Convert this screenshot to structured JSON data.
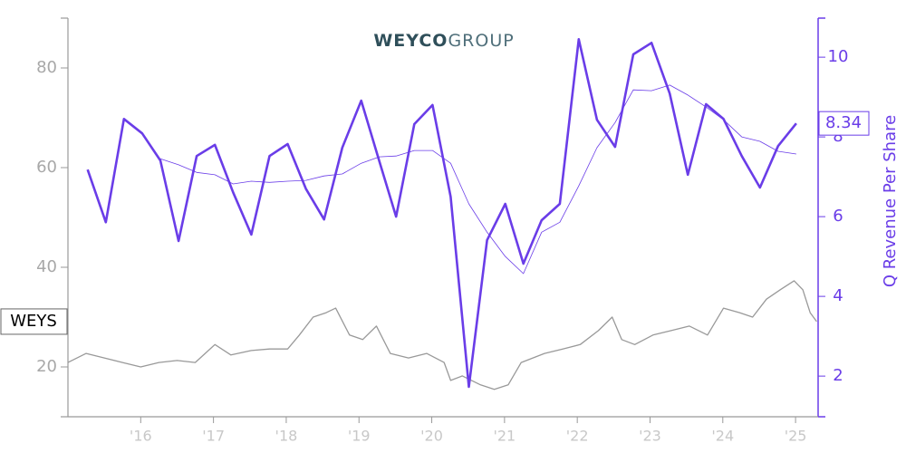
{
  "chart_data": {
    "type": "line",
    "logo": {
      "bold": "WEYCO",
      "light": "GROUP"
    },
    "y2label": "Q Revenue Per Share",
    "xlim": [
      2015,
      2025.31
    ],
    "xticks": [
      {
        "value": 2016,
        "label": "'16"
      },
      {
        "value": 2017,
        "label": "'17"
      },
      {
        "value": 2018,
        "label": "'18"
      },
      {
        "value": 2019,
        "label": "'19"
      },
      {
        "value": 2020,
        "label": "'20"
      },
      {
        "value": 2021,
        "label": "'21"
      },
      {
        "value": 2022,
        "label": "'22"
      },
      {
        "value": 2023,
        "label": "'23"
      },
      {
        "value": 2024,
        "label": "'24"
      },
      {
        "value": 2025,
        "label": "'25"
      }
    ],
    "ylim": [
      10,
      90
    ],
    "yticks": [
      20,
      40,
      60,
      80
    ],
    "y2lim": [
      0.98,
      10.98
    ],
    "y2ticks": [
      2,
      4,
      6,
      8,
      10
    ],
    "series": [
      {
        "name": "WEYS",
        "color": "#999999",
        "axis": "y",
        "x": [
          2015.0,
          2015.25,
          2015.5,
          2015.75,
          2016.0,
          2016.25,
          2016.5,
          2016.75,
          2017.02,
          2017.24,
          2017.52,
          2017.77,
          2018.02,
          2018.18,
          2018.37,
          2018.55,
          2018.68,
          2018.87,
          2019.05,
          2019.24,
          2019.43,
          2019.68,
          2019.93,
          2020.17,
          2020.26,
          2020.42,
          2020.67,
          2020.86,
          2021.05,
          2021.23,
          2021.55,
          2021.8,
          2022.04,
          2022.29,
          2022.48,
          2022.61,
          2022.79,
          2023.04,
          2023.29,
          2023.54,
          2023.79,
          2024.01,
          2024.23,
          2024.41,
          2024.6,
          2024.79,
          2024.98,
          2025.1,
          2025.2,
          2025.29
        ],
        "values": [
          20.9,
          22.7,
          21.8,
          20.9,
          20.0,
          20.9,
          21.3,
          20.9,
          24.5,
          22.4,
          23.3,
          23.6,
          23.6,
          26.4,
          30.0,
          30.9,
          31.8,
          26.4,
          25.5,
          28.2,
          22.7,
          21.8,
          22.7,
          20.9,
          17.3,
          18.2,
          16.4,
          15.5,
          16.4,
          20.9,
          22.7,
          23.6,
          24.5,
          27.3,
          30.0,
          25.5,
          24.5,
          26.4,
          27.3,
          28.2,
          26.4,
          31.8,
          30.9,
          30.0,
          33.6,
          35.5,
          37.3,
          35.5,
          30.9,
          29.1
        ]
      },
      {
        "name": "Q Revenue Per Share",
        "color": "#6a3de8",
        "axis": "y2",
        "x": [
          2015.27,
          2015.52,
          2015.77,
          2016.02,
          2016.27,
          2016.52,
          2016.77,
          2017.02,
          2017.27,
          2017.52,
          2017.77,
          2018.02,
          2018.27,
          2018.52,
          2018.77,
          2019.03,
          2019.28,
          2019.51,
          2019.76,
          2020.01,
          2020.26,
          2020.51,
          2020.76,
          2021.01,
          2021.26,
          2021.51,
          2021.76,
          2022.02,
          2022.27,
          2022.52,
          2022.77,
          2023.02,
          2023.27,
          2023.52,
          2023.77,
          2024.01,
          2024.26,
          2024.51,
          2024.76,
          2025.01
        ],
        "values": [
          7.18,
          5.86,
          8.45,
          8.09,
          7.41,
          5.39,
          7.52,
          7.8,
          6.61,
          5.55,
          7.52,
          7.82,
          6.7,
          5.93,
          7.73,
          8.91,
          7.39,
          6.0,
          8.32,
          8.8,
          6.5,
          1.73,
          5.41,
          6.32,
          4.82,
          5.91,
          6.32,
          10.45,
          8.43,
          7.75,
          10.07,
          10.36,
          9.09,
          7.05,
          8.82,
          8.45,
          7.52,
          6.73,
          7.77,
          8.34
        ]
      },
      {
        "color": "#6a3de8",
        "axis": "y2",
        "x": [
          2016.27,
          2016.52,
          2016.77,
          2017.02,
          2017.27,
          2017.52,
          2017.77,
          2018.02,
          2018.27,
          2018.52,
          2018.77,
          2019.03,
          2019.28,
          2019.51,
          2019.76,
          2020.01,
          2020.26,
          2020.51,
          2020.76,
          2021.01,
          2021.26,
          2021.51,
          2021.76,
          2022.02,
          2022.27,
          2022.52,
          2022.77,
          2023.02,
          2023.27,
          2023.52,
          2023.77,
          2024.01,
          2024.26,
          2024.51,
          2024.76,
          2025.01
        ],
        "values": [
          7.45,
          7.3,
          7.11,
          7.05,
          6.82,
          6.89,
          6.86,
          6.89,
          6.91,
          7.02,
          7.07,
          7.34,
          7.5,
          7.52,
          7.66,
          7.66,
          7.34,
          6.32,
          5.61,
          5.0,
          4.57,
          5.61,
          5.86,
          6.77,
          7.73,
          8.36,
          9.18,
          9.16,
          9.3,
          9.05,
          8.75,
          8.43,
          8.0,
          7.89,
          7.64,
          7.57
        ]
      }
    ]
  }
}
